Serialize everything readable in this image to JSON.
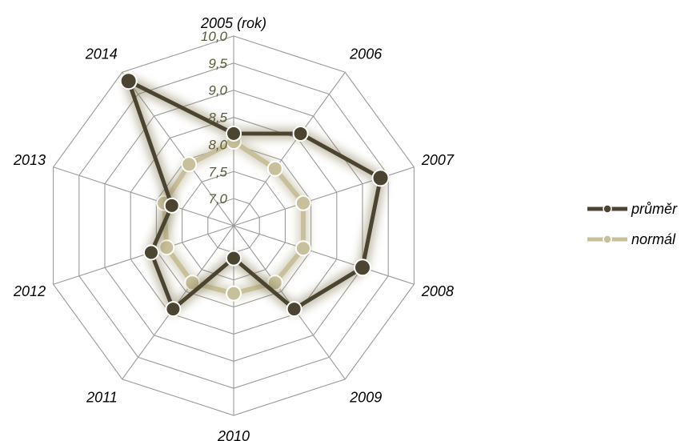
{
  "chart_data": {
    "type": "radar",
    "categories": [
      "2005 (rok)",
      "2006",
      "2007",
      "2008",
      "2009",
      "2010",
      "2011",
      "2012",
      "2013",
      "2014"
    ],
    "rlim": [
      6.5,
      10.0
    ],
    "ticks": [
      {
        "value": 7.0,
        "label": "7,0"
      },
      {
        "value": 7.5,
        "label": "7,5"
      },
      {
        "value": 8.0,
        "label": "8,0"
      },
      {
        "value": 8.5,
        "label": "8,5"
      },
      {
        "value": 9.0,
        "label": "9,0"
      },
      {
        "value": 9.5,
        "label": "9,5"
      },
      {
        "value": 10.0,
        "label": "10,0"
      }
    ],
    "grid": true,
    "legend_position": "right",
    "series": [
      {
        "name": "průměr",
        "color": "#4a4430",
        "values": [
          8.2,
          8.6,
          9.35,
          9.0,
          8.4,
          7.1,
          8.4,
          8.1,
          7.7,
          9.8
        ]
      },
      {
        "name": "normál",
        "color": "#c8c09a",
        "values": [
          8.05,
          7.8,
          7.85,
          7.85,
          7.8,
          7.75,
          7.8,
          7.8,
          7.85,
          7.9
        ]
      }
    ]
  }
}
